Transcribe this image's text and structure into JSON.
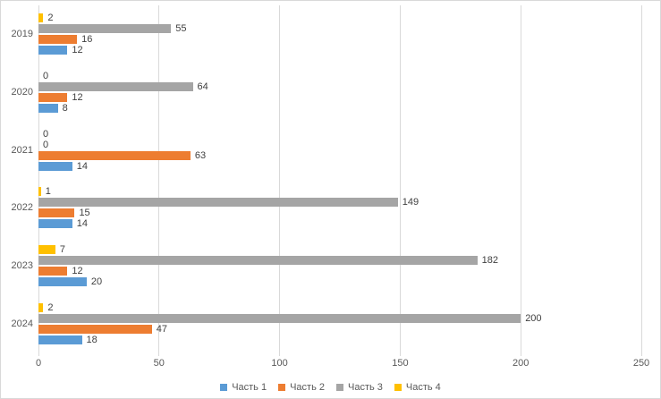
{
  "chart_data": {
    "type": "bar",
    "orientation": "horizontal",
    "title": "",
    "xlabel": "",
    "ylabel": "",
    "categories": [
      "2019",
      "2020",
      "2021",
      "2022",
      "2023",
      "2024"
    ],
    "series": [
      {
        "name": "Часть 1",
        "color": "#5B9BD5",
        "values": [
          12,
          8,
          14,
          14,
          20,
          18
        ]
      },
      {
        "name": "Часть 2",
        "color": "#ED7D31",
        "values": [
          16,
          12,
          63,
          15,
          12,
          47
        ]
      },
      {
        "name": "Часть 3",
        "color": "#A5A5A5",
        "values": [
          55,
          64,
          0,
          149,
          182,
          200
        ]
      },
      {
        "name": "Часть 4",
        "color": "#FFC000",
        "values": [
          2,
          0,
          0,
          1,
          7,
          2
        ]
      }
    ],
    "xlim": [
      0,
      250
    ],
    "x_ticks": [
      0,
      50,
      100,
      150,
      200,
      250
    ],
    "grid": true,
    "data_labels": true,
    "legend_position": "bottom",
    "colors": {
      "gridline": "#d9d9d9",
      "axis_text": "#595959",
      "data_label_text": "#404040",
      "background": "#ffffff",
      "border": "#d9d9d9"
    }
  }
}
